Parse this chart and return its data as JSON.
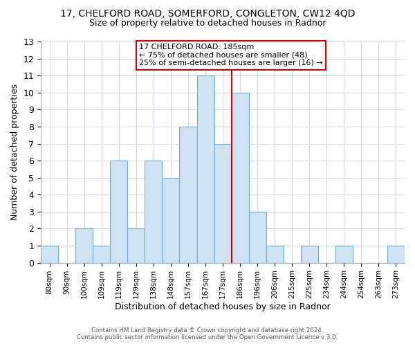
{
  "title": "17, CHELFORD ROAD, SOMERFORD, CONGLETON, CW12 4QD",
  "subtitle": "Size of property relative to detached houses in Radnor",
  "xlabel": "Distribution of detached houses by size in Radnor",
  "ylabel": "Number of detached properties",
  "bar_labels": [
    "80sqm",
    "90sqm",
    "100sqm",
    "109sqm",
    "119sqm",
    "129sqm",
    "138sqm",
    "148sqm",
    "157sqm",
    "167sqm",
    "177sqm",
    "186sqm",
    "196sqm",
    "206sqm",
    "215sqm",
    "225sqm",
    "234sqm",
    "244sqm",
    "254sqm",
    "263sqm",
    "273sqm"
  ],
  "bar_values": [
    1,
    0,
    2,
    1,
    6,
    2,
    6,
    5,
    8,
    11,
    7,
    10,
    3,
    1,
    0,
    1,
    0,
    1,
    0,
    0,
    1
  ],
  "bar_color": "#cfe2f3",
  "bar_edge_color": "#6baed6",
  "vline_x_index": 11,
  "vline_color": "#cc0000",
  "ylim": [
    0,
    13
  ],
  "yticks": [
    0,
    1,
    2,
    3,
    4,
    5,
    6,
    7,
    8,
    9,
    10,
    11,
    12,
    13
  ],
  "annotation_title": "17 CHELFORD ROAD: 185sqm",
  "annotation_line1": "← 75% of detached houses are smaller (48)",
  "annotation_line2": "25% of semi-detached houses are larger (16) →",
  "footer_line1": "Contains HM Land Registry data © Crown copyright and database right 2024.",
  "footer_line2": "Contains public sector information licensed under the Open Government Licence v 3.0.",
  "grid_color": "#d0d8e4",
  "background_color": "#ffffff"
}
